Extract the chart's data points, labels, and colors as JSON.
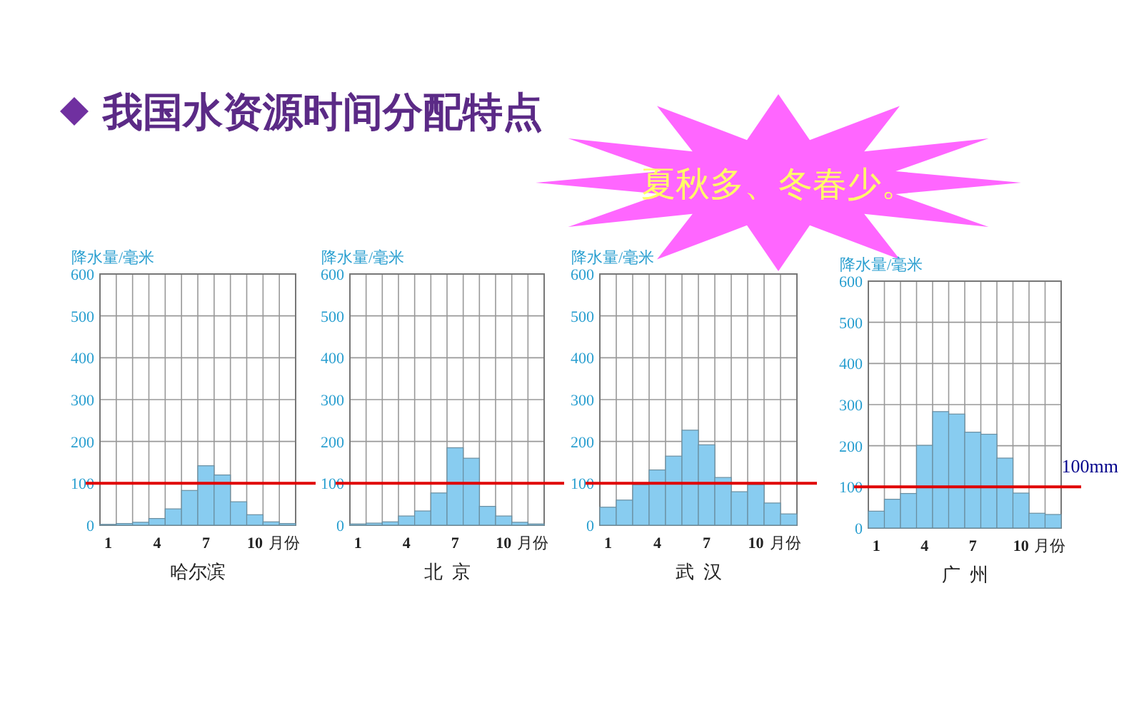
{
  "chart_data": [
    {
      "type": "other",
      "title": "我国水资源时间分配特点",
      "annotations": [
        "夏秋多、冬春少。"
      ]
    },
    {
      "type": "bar",
      "title": "哈尔滨",
      "ylabel": "降水量/毫米",
      "xlabel": "月份",
      "categories": [
        "1",
        null,
        null,
        "4",
        null,
        null,
        "7",
        null,
        null,
        "10",
        null,
        null
      ],
      "values": [
        2,
        4,
        7,
        16,
        39,
        83,
        142,
        120,
        56,
        25,
        8,
        4
      ],
      "color": "#88ccf0",
      "ylim": [
        0,
        600
      ],
      "yticks": [
        0,
        100,
        200,
        300,
        400,
        500,
        600
      ],
      "grid": true,
      "ref_lines": [
        {
          "axis": "y",
          "value": 100,
          "color": "#e00000"
        }
      ]
    },
    {
      "type": "bar",
      "title": "北  京",
      "ylabel": "降水量/毫米",
      "xlabel": "月份",
      "categories": [
        "1",
        null,
        null,
        "4",
        null,
        null,
        "7",
        null,
        null,
        "10",
        null,
        null
      ],
      "values": [
        3,
        5,
        8,
        22,
        34,
        77,
        185,
        160,
        45,
        22,
        7,
        3
      ],
      "color": "#88ccf0",
      "ylim": [
        0,
        600
      ],
      "yticks": [
        0,
        100,
        200,
        300,
        400,
        500,
        600
      ],
      "grid": true,
      "ref_lines": [
        {
          "axis": "y",
          "value": 100,
          "color": "#e00000"
        }
      ]
    },
    {
      "type": "bar",
      "title": "武  汉",
      "ylabel": "降水量/毫米",
      "xlabel": "月份",
      "categories": [
        "1",
        null,
        null,
        "4",
        null,
        null,
        "7",
        null,
        null,
        "10",
        null,
        null
      ],
      "values": [
        43,
        60,
        97,
        132,
        165,
        227,
        192,
        114,
        80,
        97,
        53,
        27
      ],
      "color": "#88ccf0",
      "ylim": [
        0,
        600
      ],
      "yticks": [
        0,
        100,
        200,
        300,
        400,
        500,
        600
      ],
      "grid": true,
      "ref_lines": [
        {
          "axis": "y",
          "value": 100,
          "color": "#e00000"
        }
      ]
    },
    {
      "type": "bar",
      "title": "广  州",
      "ylabel": "降水量/毫米",
      "xlabel": "月份",
      "categories": [
        "1",
        null,
        null,
        "4",
        null,
        null,
        "7",
        null,
        null,
        "10",
        null,
        null
      ],
      "values": [
        41,
        70,
        84,
        201,
        283,
        277,
        233,
        228,
        170,
        85,
        36,
        33
      ],
      "color": "#88ccf0",
      "ylim": [
        0,
        600
      ],
      "yticks": [
        0,
        100,
        200,
        300,
        400,
        500,
        600
      ],
      "grid": true,
      "ref_lines": [
        {
          "axis": "y",
          "value": 100,
          "label": "100mm",
          "color": "#e00000"
        }
      ]
    }
  ]
}
